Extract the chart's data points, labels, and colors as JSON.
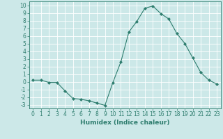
{
  "x": [
    0,
    1,
    2,
    3,
    4,
    5,
    6,
    7,
    8,
    9,
    10,
    11,
    12,
    13,
    14,
    15,
    16,
    17,
    18,
    19,
    20,
    21,
    22,
    23
  ],
  "y": [
    0.2,
    0.2,
    -0.1,
    -0.1,
    -1.2,
    -2.2,
    -2.3,
    -2.5,
    -2.8,
    -3.1,
    -0.1,
    2.6,
    6.5,
    7.9,
    9.6,
    9.9,
    8.9,
    8.2,
    6.3,
    5.0,
    3.1,
    1.2,
    0.2,
    -0.3
  ],
  "line_color": "#2e7d6e",
  "marker": "D",
  "marker_size": 2.0,
  "bg_color": "#cce8e8",
  "grid_color": "#ffffff",
  "xlabel": "Humidex (Indice chaleur)",
  "xlim": [
    -0.5,
    23.5
  ],
  "ylim": [
    -3.5,
    10.5
  ],
  "yticks": [
    -3,
    -2,
    -1,
    0,
    1,
    2,
    3,
    4,
    5,
    6,
    7,
    8,
    9,
    10
  ],
  "xticks": [
    0,
    1,
    2,
    3,
    4,
    5,
    6,
    7,
    8,
    9,
    10,
    11,
    12,
    13,
    14,
    15,
    16,
    17,
    18,
    19,
    20,
    21,
    22,
    23
  ],
  "tick_color": "#2e7d6e",
  "label_color": "#2e7d6e",
  "font_size": 5.5,
  "xlabel_fontsize": 6.5,
  "linewidth": 0.8
}
